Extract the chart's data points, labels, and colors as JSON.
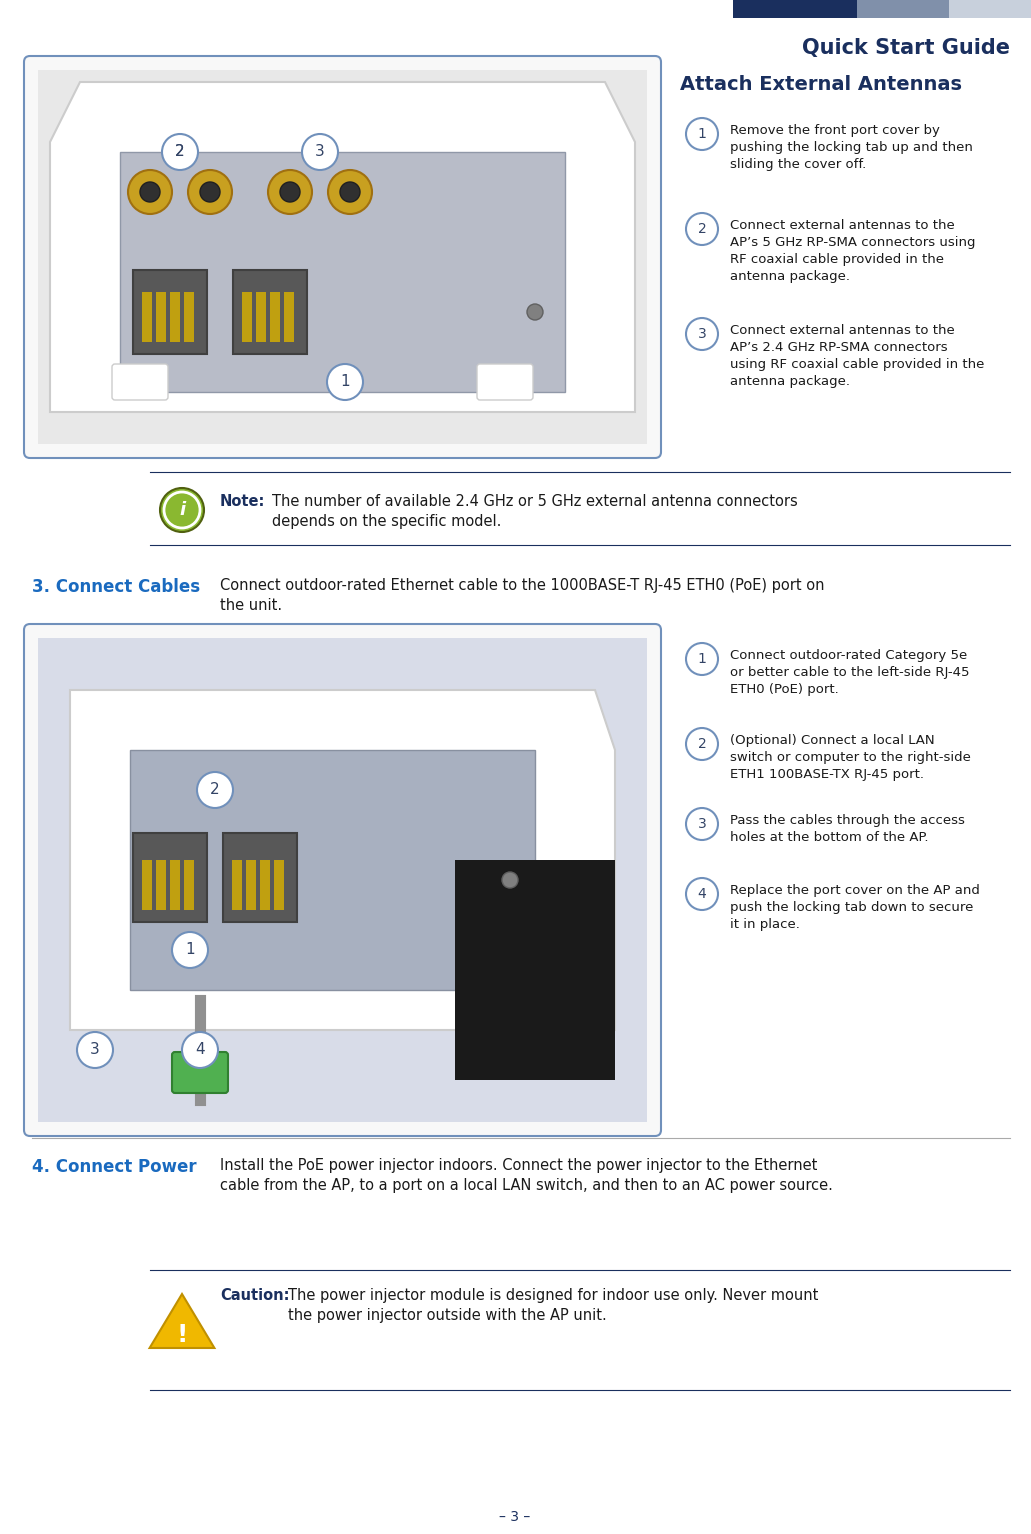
{
  "page_title": "Quick Start Guide",
  "page_number": "– 3 –",
  "header_colors": [
    "#c8d0dc",
    "#8090aa",
    "#1a2f5e"
  ],
  "title_color": "#1a2f5e",
  "body_text_color": "#1a1a1a",
  "accent_color": "#1a6abf",
  "section1_title": "Attach External Antennas",
  "section1_steps": [
    "Remove the front port cover by\npushing the locking tab up and then\nsliding the cover off.",
    "Connect external antennas to the\nAP’s 5 GHz RP-SMA connectors using\nRF coaxial cable provided in the\nantenna package.",
    "Connect external antennas to the\nAP’s 2.4 GHz RP-SMA connectors\nusing RF coaxial cable provided in the\nantenna package."
  ],
  "note_icon_color": "#8ab830",
  "note_text_bold": "Note:",
  "note_text_rest": " The number of available 2.4 GHz or 5 GHz external antenna connectors\ndepends on the specific model.",
  "note_text_color": "#1a2f5e",
  "section2_label": "3. Connect Cables",
  "section2_text": "Connect outdoor-rated Ethernet cable to the 1000BASE-T RJ-45 ETH0 (PoE) port on\nthe unit.",
  "section2_steps": [
    "Connect outdoor-rated Category 5e\nor better cable to the left-side RJ-45\nETH0 (PoE) port.",
    "(Optional) Connect a local LAN\nswitch or computer to the right-side\nETH1 100BASE-TX RJ-45 port.",
    "Pass the cables through the access\nholes at the bottom of the AP.",
    "Replace the port cover on the AP and\npush the locking tab down to secure\nit in place."
  ],
  "section3_label": "4. Connect Power",
  "section3_text": "Install the PoE power injector indoors. Connect the power injector to the Ethernet\ncable from the AP, to a port on a local LAN switch, and then to an AC power source.",
  "caution_icon_color": "#f0b800",
  "caution_text_bold": "Caution:",
  "caution_text_rest": " The power injector module is designed for indoor use only. Never mount\nthe power injector outside with the AP unit.",
  "divider_color": "#1a2f5e",
  "divider_light": "#aaaaaa",
  "bg_color": "#ffffff",
  "circle_edge_color": "#7090bb",
  "circle_text_color": "#334466",
  "label_color": "#1a6abf"
}
